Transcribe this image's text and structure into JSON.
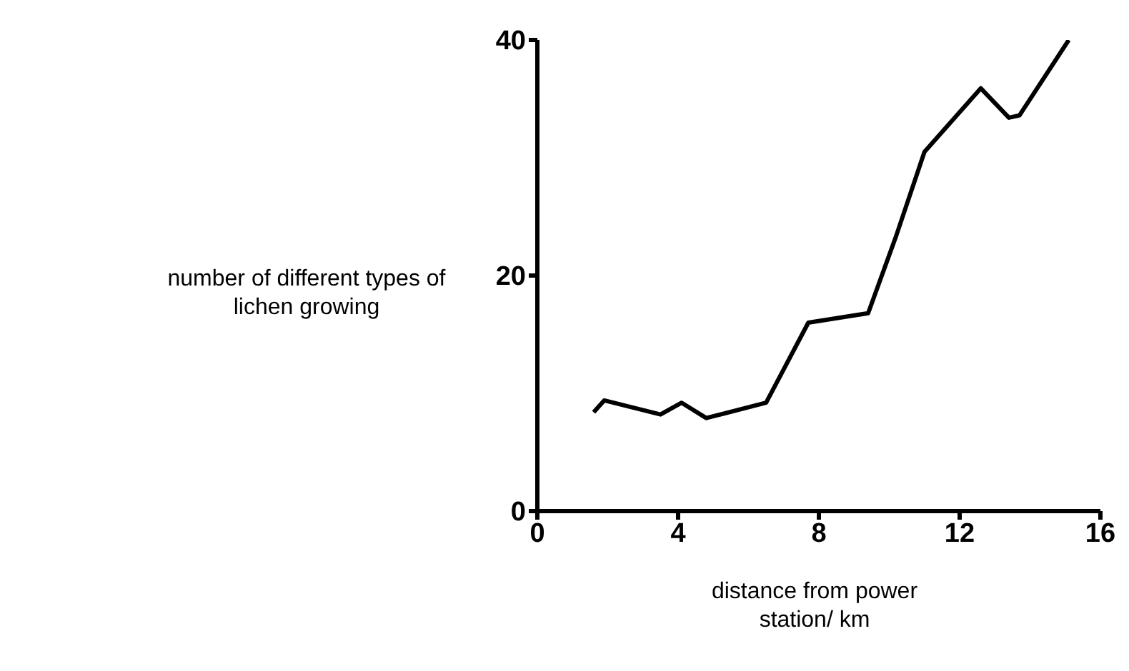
{
  "chart_data": {
    "type": "line",
    "xlabel": "distance from power station/ km",
    "ylabel": "number of different types of lichen growing",
    "x": [
      1.6,
      1.9,
      3.5,
      4.1,
      4.8,
      6.5,
      7.7,
      9.4,
      10.2,
      11.0,
      12.6,
      13.4,
      13.7,
      15.1
    ],
    "values": [
      8.4,
      9.4,
      8.2,
      9.2,
      7.9,
      9.2,
      16,
      16.8,
      23.4,
      30.5,
      35.9,
      33.4,
      33.6,
      40
    ],
    "color": "#000000",
    "xlim": [
      0,
      16
    ],
    "xticks": [
      0,
      4,
      8,
      12,
      16
    ],
    "ylim": [
      0,
      40
    ],
    "yticks": [
      0,
      20,
      40
    ],
    "grid": false,
    "marker": "none",
    "line_style": "solid"
  }
}
